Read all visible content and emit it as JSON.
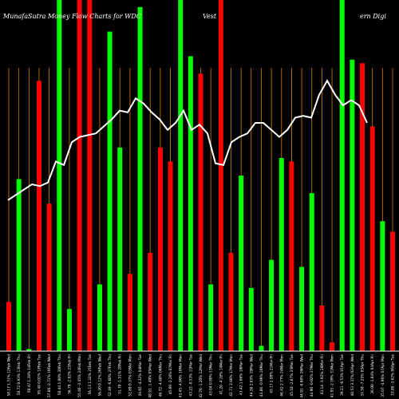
{
  "chart_data": {
    "type": "bar",
    "title_left": "MunafaSutra Money Flow  Charts for WDC",
    "title_mid": "(Western Digital Corporation) MunafaSutra.com",
    "title_mid_visible": "Vest",
    "title_right": "ern  Digi",
    "colors": {
      "background": "#000000",
      "up": "#00ff00",
      "down": "#ff0000",
      "line": "#ffffff",
      "grid": "#cd7f00"
    },
    "y_range": [
      0,
      100
    ],
    "bars": [
      {
        "label": "58.17 1.31% 12Feb Wed",
        "dir": "down",
        "value": 14
      },
      {
        "label": "58.72 0.93% 13Feb Thu",
        "dir": "up",
        "value": 49
      },
      {
        "label": "59.47 1.28% 14Feb Fri",
        "dir": "up",
        "value": 0.6
      },
      {
        "label": "59.48 0.02% 18Feb Tue",
        "dir": "down",
        "value": 77
      },
      {
        "label": "57.86 -2.72% 19Feb Wed",
        "dir": "down",
        "value": 42
      },
      {
        "label": "58.44 1.00% 20Feb Thu",
        "dir": "up",
        "value": 100
      },
      {
        "label": "56.79 -2.82% 21Feb Fri",
        "dir": "up",
        "value": 12
      },
      {
        "label": "55.40 -2.45% 24Feb Mon",
        "dir": "down",
        "value": 100
      },
      {
        "label": "56.13 1.32% 25Feb Tue",
        "dir": "down",
        "value": 100
      },
      {
        "label": "56.20 0.12% 26Feb Wed",
        "dir": "up",
        "value": 19
      },
      {
        "label": "52.49 -6.60% 27Feb Thu",
        "dir": "up",
        "value": 91
      },
      {
        "label": "51.70 -1.51% 28Feb Fri",
        "dir": "up",
        "value": 58
      },
      {
        "label": "51.89 0.37% 03Mar Mon",
        "dir": "down",
        "value": 22
      },
      {
        "label": "49.65 -4.32% 04Mar Tue",
        "dir": "up",
        "value": 98
      },
      {
        "label": "48.91 -1.49% 05Mar Wed",
        "dir": "down",
        "value": 28
      },
      {
        "label": "46.72 -4.48% 06Mar Thu",
        "dir": "down",
        "value": 58
      },
      {
        "label": "45.69 -2.20% 07Mar Fri",
        "dir": "down",
        "value": 54
      },
      {
        "label": "43.45 -4.90% 10Mar Mon",
        "dir": "up",
        "value": 100
      },
      {
        "label": "43.22 -0.53% 11Mar Tue",
        "dir": "up",
        "value": 84
      },
      {
        "label": "42.70 -1.20% 12Mar Wed",
        "dir": "down",
        "value": 79
      },
      {
        "label": "43.04 0.80% 13Mar Thu",
        "dir": "up",
        "value": 19
      },
      {
        "label": "41.20 -4.28% 14Mar Fri",
        "dir": "down",
        "value": 100
      },
      {
        "label": "42.71 3.66% 17Mar Mon",
        "dir": "down",
        "value": 28
      },
      {
        "label": "43.42 1.66% 18Mar Tue",
        "dir": "up",
        "value": 50
      },
      {
        "label": "44.30 2.03% 19Mar Wed",
        "dir": "up",
        "value": 18
      },
      {
        "label": "43.86 -0.99% 20Mar Thu",
        "dir": "up",
        "value": 1.5
      },
      {
        "label": "45.17 2.99% 21Mar Fri",
        "dir": "up",
        "value": 26
      },
      {
        "label": "46.42 2.77% 24Mar Mon",
        "dir": "up",
        "value": 55
      },
      {
        "label": "45.18 -2.67% 25Mar Tue",
        "dir": "down",
        "value": 54
      },
      {
        "label": "44.91 -0.60% 26Mar Wed",
        "dir": "up",
        "value": 24
      },
      {
        "label": "44.90 -0.02% 27Mar Thu",
        "dir": "up",
        "value": 45
      },
      {
        "label": "43.14 -3.92% 28Mar Fri",
        "dir": "down",
        "value": 13
      },
      {
        "label": "41.95 -2.76% 31Mar Mon",
        "dir": "down",
        "value": 2.5
      },
      {
        "label": "39.21 -6.53% 01Apr Tue",
        "dir": "up",
        "value": 100
      },
      {
        "label": "40.53 3.37% 02Apr Wed",
        "dir": "up",
        "value": 83
      },
      {
        "label": "37.59 -7.25% 03Apr Thu",
        "dir": "down",
        "value": 82
      },
      {
        "label": "36.90 -1.84% 04Apr Fri",
        "dir": "down",
        "value": 64
      },
      {
        "label": "35.07 -4.96% 07Apr Mon",
        "dir": "up",
        "value": 37
      },
      {
        "label": "33.80 -3.62% 08Apr Tue",
        "dir": "down",
        "value": 34
      }
    ],
    "line": [
      43,
      44.5,
      46,
      47.5,
      47,
      48,
      54,
      53,
      59.5,
      61,
      61.5,
      62,
      64,
      66,
      68.5,
      68,
      72,
      70.5,
      68,
      66,
      63,
      65,
      68.5,
      63,
      64.5,
      62,
      53.5,
      53,
      59.5,
      61,
      62,
      65,
      65,
      63,
      61,
      63,
      66.5,
      67,
      66.5,
      73,
      77,
      73,
      70,
      71.5,
      70,
      65
    ]
  }
}
